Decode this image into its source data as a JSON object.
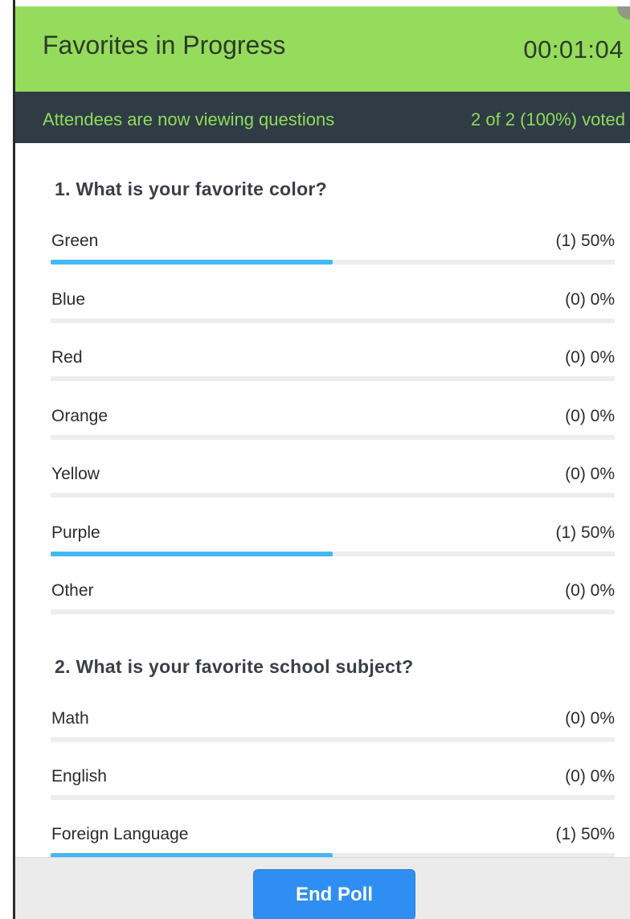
{
  "header": {
    "title": "Favorites in Progress",
    "timer": "00:01:04"
  },
  "status": {
    "message": "Attendees are now viewing questions",
    "votes": "2 of 2 (100%) voted"
  },
  "questions": [
    {
      "title": "1. What is your favorite color?",
      "answers": [
        {
          "label": "Green",
          "result": "(1) 50%",
          "fraction": 0.5
        },
        {
          "label": "Blue",
          "result": "(0) 0%",
          "fraction": 0
        },
        {
          "label": "Red",
          "result": "(0) 0%",
          "fraction": 0
        },
        {
          "label": "Orange",
          "result": "(0) 0%",
          "fraction": 0
        },
        {
          "label": "Yellow",
          "result": "(0) 0%",
          "fraction": 0
        },
        {
          "label": "Purple",
          "result": "(1) 50%",
          "fraction": 0.5
        },
        {
          "label": "Other",
          "result": "(0) 0%",
          "fraction": 0
        }
      ]
    },
    {
      "title": "2. What is your favorite school subject?",
      "answers": [
        {
          "label": "Math",
          "result": "(0) 0%",
          "fraction": 0
        },
        {
          "label": "English",
          "result": "(0) 0%",
          "fraction": 0
        },
        {
          "label": "Foreign Language",
          "result": "(1) 50%",
          "fraction": 0.5
        }
      ]
    }
  ],
  "footer": {
    "end_label": "End Poll"
  },
  "colors": {
    "header_green": "#95dc5d",
    "status_dark": "#2f3b45",
    "status_text_green": "#8fdc5a",
    "bar_blue": "#44b7f5",
    "button_blue": "#2f8ef2"
  }
}
